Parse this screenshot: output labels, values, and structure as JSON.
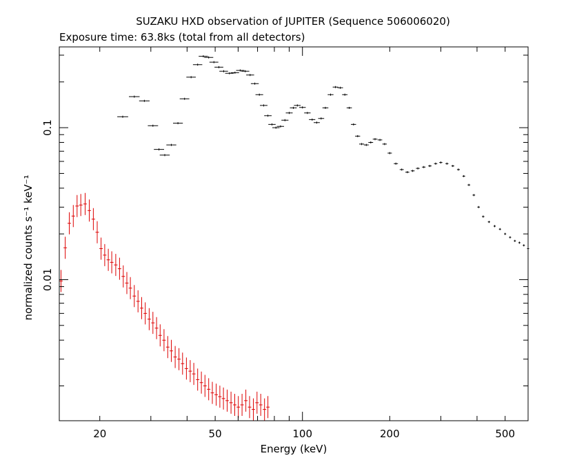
{
  "title": "SUZAKU HXD observation of JUPITER (Sequence 506006020)",
  "subtitle": "Exposure time: 63.8ks (total from all detectors)",
  "chart_data": {
    "type": "scatter",
    "xlabel": "Energy (keV)",
    "ylabel": "normalized counts s⁻¹ keV⁻¹",
    "xscale": "log",
    "yscale": "log",
    "xlim": [
      14.5,
      600
    ],
    "ylim": [
      0.00118,
      0.34
    ],
    "xticks_major": [
      20,
      50,
      100,
      200,
      500
    ],
    "xtick_labels": [
      "20",
      "50",
      "100",
      "200",
      "500"
    ],
    "yticks_major": [
      0.01,
      0.1
    ],
    "ytick_labels": [
      "0.01",
      "0.1"
    ],
    "grid": false,
    "legend": "none",
    "series": [
      {
        "color": "#000000",
        "x": [
          24.0,
          26.3,
          28.5,
          30.5,
          32.0,
          33.5,
          35.3,
          37.2,
          39.2,
          41.3,
          43.5,
          45.5,
          47.5,
          49.5,
          51.5,
          53.5,
          56,
          58.5,
          61,
          63.5,
          66,
          68.5,
          71,
          73.5,
          76,
          78.5,
          81,
          84,
          87,
          90,
          93,
          96,
          100,
          104,
          108,
          112,
          116,
          120,
          125,
          130,
          135,
          140,
          145,
          150,
          155,
          160,
          166,
          172,
          178,
          185,
          192,
          200,
          210,
          220,
          230,
          240,
          250,
          262,
          275,
          288,
          300,
          315,
          330,
          345,
          360,
          375,
          390,
          405,
          420,
          440,
          460,
          480,
          500,
          520,
          540,
          560,
          580,
          600
        ],
        "y": [
          0.118,
          0.16,
          0.15,
          0.103,
          0.072,
          0.066,
          0.077,
          0.107,
          0.155,
          0.215,
          0.26,
          0.295,
          0.29,
          0.27,
          0.25,
          0.235,
          0.228,
          0.23,
          0.238,
          0.235,
          0.222,
          0.195,
          0.165,
          0.14,
          0.12,
          0.105,
          0.1,
          0.102,
          0.112,
          0.125,
          0.135,
          0.14,
          0.136,
          0.125,
          0.113,
          0.108,
          0.115,
          0.135,
          0.165,
          0.185,
          0.183,
          0.165,
          0.135,
          0.105,
          0.088,
          0.078,
          0.077,
          0.08,
          0.084,
          0.083,
          0.078,
          0.068,
          0.058,
          0.053,
          0.051,
          0.052,
          0.054,
          0.055,
          0.056,
          0.058,
          0.059,
          0.058,
          0.056,
          0.053,
          0.048,
          0.042,
          0.036,
          0.03,
          0.026,
          0.024,
          0.0225,
          0.0215,
          0.02,
          0.019,
          0.018,
          0.0175,
          0.0168,
          0.016
        ]
      },
      {
        "color": "#dd0000",
        "x": [
          14.7,
          15.2,
          15.7,
          16.2,
          16.7,
          17.2,
          17.8,
          18.4,
          19.0,
          19.6,
          20.2,
          20.8,
          21.4,
          22.0,
          22.7,
          23.4,
          24.1,
          24.8,
          25.5,
          26.3,
          27.1,
          27.9,
          28.7,
          29.6,
          30.5,
          31.4,
          32.3,
          33.3,
          34.3,
          35.3,
          36.4,
          37.5,
          38.6,
          39.8,
          41.0,
          42.2,
          43.5,
          44.8,
          46.1,
          47.5,
          48.9,
          50.4,
          51.9,
          53.4,
          55.0,
          56.7,
          58.4,
          60.1,
          61.9,
          63.8,
          65.7,
          67.7,
          69.7,
          71.8,
          74.0,
          76.0
        ],
        "y": [
          0.0098,
          0.0162,
          0.0235,
          0.0262,
          0.0305,
          0.031,
          0.0315,
          0.0285,
          0.025,
          0.0205,
          0.016,
          0.0145,
          0.0135,
          0.013,
          0.0125,
          0.0118,
          0.0105,
          0.0095,
          0.0088,
          0.0078,
          0.0072,
          0.0065,
          0.006,
          0.0055,
          0.0052,
          0.0048,
          0.0043,
          0.004,
          0.0036,
          0.0034,
          0.0031,
          0.003,
          0.0028,
          0.0026,
          0.0025,
          0.0024,
          0.0022,
          0.0021,
          0.002,
          0.0019,
          0.0018,
          0.00175,
          0.0017,
          0.00165,
          0.0016,
          0.00155,
          0.0015,
          0.00145,
          0.0015,
          0.0016,
          0.00145,
          0.0014,
          0.00155,
          0.0015,
          0.0014,
          0.00145
        ]
      }
    ]
  }
}
